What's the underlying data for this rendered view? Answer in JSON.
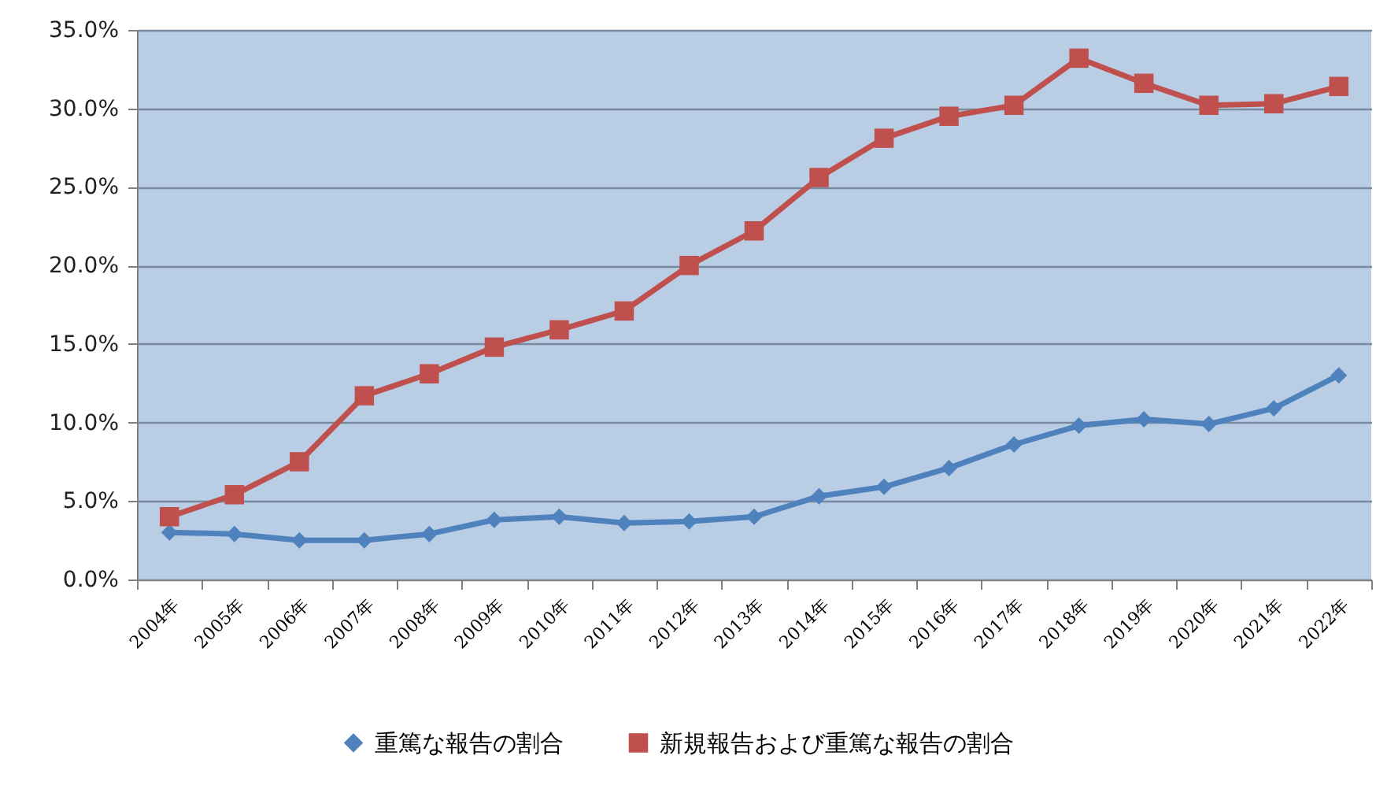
{
  "chart_data": {
    "type": "line",
    "categories": [
      "2004年",
      "2005年",
      "2006年",
      "2007年",
      "2008年",
      "2009年",
      "2010年",
      "2011年",
      "2012年",
      "2013年",
      "2014年",
      "2015年",
      "2016年",
      "2017年",
      "2018年",
      "2019年",
      "2020年",
      "2021年",
      "2022年"
    ],
    "series": [
      {
        "name": "重篤な報告の割合",
        "color": "#4f81bd",
        "marker": "diamond",
        "values": [
          3.0,
          2.9,
          2.5,
          2.5,
          2.9,
          3.8,
          4.0,
          3.6,
          3.7,
          4.0,
          5.3,
          5.9,
          7.1,
          8.6,
          9.8,
          10.2,
          9.9,
          10.9,
          13.0
        ]
      },
      {
        "name": "新規報告および重篤な報告の割合",
        "color": "#c0504d",
        "marker": "square",
        "values": [
          4.0,
          5.4,
          7.5,
          11.7,
          13.1,
          14.8,
          15.9,
          17.1,
          20.0,
          22.2,
          25.6,
          28.1,
          29.5,
          30.2,
          33.2,
          31.6,
          30.2,
          30.3,
          31.4
        ]
      }
    ],
    "ylim": [
      0,
      35
    ],
    "yticks": [
      {
        "value": 0,
        "label": "0.0%"
      },
      {
        "value": 5,
        "label": "5.0%"
      },
      {
        "value": 10,
        "label": "10.0%"
      },
      {
        "value": 15,
        "label": "15.0%"
      },
      {
        "value": 20,
        "label": "20.0%"
      },
      {
        "value": 25,
        "label": "25.0%"
      },
      {
        "value": 30,
        "label": "30.0%"
      },
      {
        "value": 35,
        "label": "35.0%"
      }
    ],
    "grid": "y",
    "legend": "bottom",
    "line_style": "solid"
  }
}
